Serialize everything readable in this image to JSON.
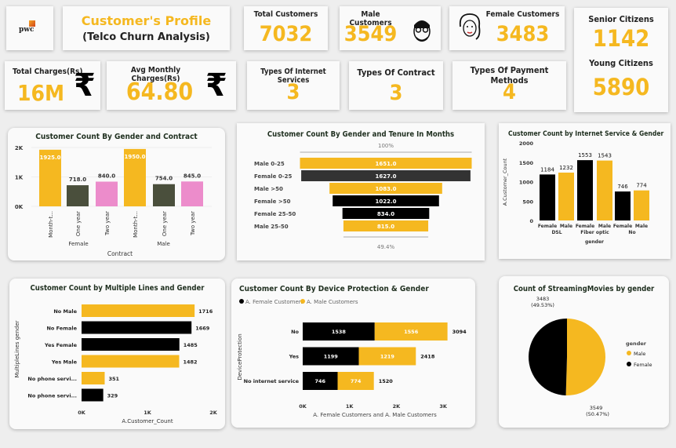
{
  "header": {
    "logo": "pwc",
    "title": "Customer's Profile",
    "subtitle": "(Telco Churn Analysis)"
  },
  "kpis": {
    "total_customers": {
      "label": "Total Customers",
      "value": "7032"
    },
    "male_customers": {
      "label": "Male Customers",
      "value": "3549",
      "icon": "male-face-icon"
    },
    "female_customers": {
      "label": "Female Customers",
      "value": "3483",
      "icon": "female-face-icon"
    },
    "senior_citizens": {
      "label": "Senior Citizens",
      "value": "1142"
    },
    "young_citizens": {
      "label": "Young Citizens",
      "value": "5890"
    },
    "total_charges": {
      "label": "Total Charges(Rs)",
      "value": "16M",
      "icon": "rupee-icon"
    },
    "avg_monthly": {
      "label": "Avg Monthly Charges(Rs)",
      "value": "64.80",
      "icon": "rupee-icon"
    },
    "internet_types": {
      "label": "Types Of Internet Services",
      "value": "3"
    },
    "contract_types": {
      "label": "Types Of Contract",
      "value": "3"
    },
    "payment_types": {
      "label": "Types Of Payment Methods",
      "value": "4"
    }
  },
  "colors": {
    "accent": "#f5b820",
    "black": "#000000",
    "olive": "#4a4f3c",
    "pink": "#ec8ccb",
    "dark": "#333333"
  },
  "chart_data": [
    {
      "id": "contract",
      "type": "bar",
      "title": "Customer Count By Gender and Contract",
      "xlabel": "Contract",
      "ylim": [
        0,
        2000
      ],
      "yticks": [
        "0K",
        "1K",
        "2K"
      ],
      "groups": [
        "Female",
        "Male"
      ],
      "categories": [
        "Month-t...",
        "One year",
        "Two year"
      ],
      "values": [
        [
          1925,
          718,
          840
        ],
        [
          1950,
          754,
          845
        ]
      ],
      "labels": [
        [
          "1925.0",
          "718.0",
          "840.0"
        ],
        [
          "1950.0",
          "754.0",
          "845.0"
        ]
      ]
    },
    {
      "id": "tenure",
      "type": "funnel",
      "title": "Customer Count By Gender and Tenure In Months",
      "top_pct": "100%",
      "bottom_pct": "49.4%",
      "categories": [
        "Male 0-25",
        "Female 0-25",
        "Male >50",
        "Female >50",
        "Female 25-50",
        "Male 25-50"
      ],
      "values": [
        1651,
        1627,
        1083,
        1022,
        834,
        815
      ],
      "labels": [
        "1651.0",
        "1627.0",
        "1083.0",
        "1022.0",
        "834.0",
        "815.0"
      ]
    },
    {
      "id": "internet",
      "type": "bar",
      "title": "Customer Count by Internet Service & Gender",
      "ylabel": "A.Customer_Count",
      "xlabel": "gender",
      "ylim": [
        0,
        2000
      ],
      "yticks": [
        "0",
        "500",
        "1000",
        "1500",
        "2000"
      ],
      "groups": [
        "DSL",
        "Fiber optic",
        "No"
      ],
      "categories": [
        "Female",
        "Male"
      ],
      "values": [
        [
          1184,
          1232
        ],
        [
          1553,
          1543
        ],
        [
          746,
          774
        ]
      ]
    },
    {
      "id": "multiplelines",
      "type": "bar-horizontal",
      "title": "Customer Count by Multiple Lines and Gender",
      "ylabel": "MultipleLines gender",
      "xlabel": "A.Customer_Count",
      "xlim": [
        0,
        2000
      ],
      "xticks": [
        "0K",
        "1K",
        "2K"
      ],
      "categories": [
        "No Male",
        "No Female",
        "Yes Female",
        "Yes Male",
        "No phone servi...",
        "No phone servi..."
      ],
      "values": [
        1716,
        1669,
        1485,
        1482,
        351,
        329
      ],
      "gender": [
        "Male",
        "Female",
        "Female",
        "Male",
        "Male",
        "Female"
      ]
    },
    {
      "id": "device",
      "type": "bar-stacked-horizontal",
      "title": "Customer Count By Device Protection & Gender",
      "ylabel": "DeviceProtection",
      "xlabel": "A. Female Customers and A. Male Customers",
      "xlim": [
        0,
        3000
      ],
      "xticks": [
        "0K",
        "1K",
        "2K",
        "3K"
      ],
      "legend": "top-left",
      "categories": [
        "No",
        "Yes",
        "No internet service"
      ],
      "series": [
        {
          "name": "A. Female Customers",
          "values": [
            1538,
            1199,
            746
          ]
        },
        {
          "name": "A. Male Customers",
          "values": [
            1556,
            1219,
            774
          ]
        }
      ],
      "totals": [
        3094,
        2418,
        1520
      ]
    },
    {
      "id": "streaming",
      "type": "pie",
      "title": "Count of StreamingMovies by gender",
      "legend_title": "gender",
      "legend": "right",
      "slices": [
        {
          "name": "Male",
          "value": 3549,
          "label": "3549",
          "pct": "(50.47%)"
        },
        {
          "name": "Female",
          "value": 3483,
          "label": "3483",
          "pct": "(49.53%)"
        }
      ]
    }
  ]
}
